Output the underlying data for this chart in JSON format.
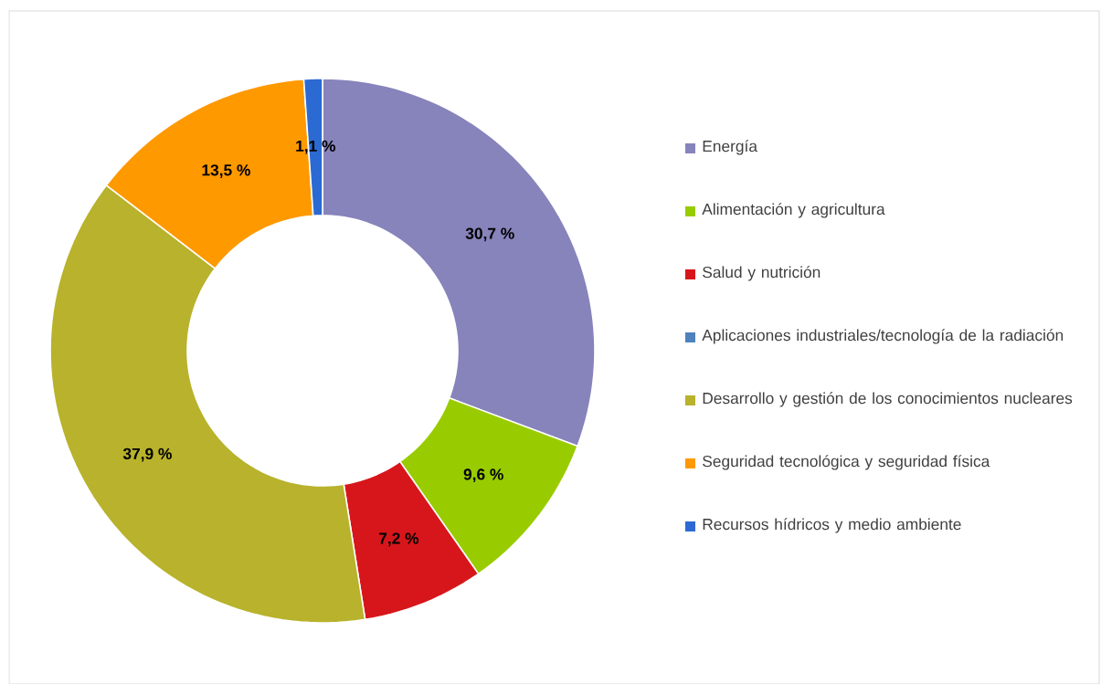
{
  "chart_data": {
    "type": "donut",
    "categories": [
      "Energía",
      "Alimentación y agricultura",
      "Salud y nutrición",
      "Aplicaciones industriales/tecnología de la radiación",
      "Desarrollo y gestión de los conocimientos nucleares",
      "Seguridad tecnológica y seguridad física",
      "Recursos hídricos y medio ambiente"
    ],
    "values": [
      30.7,
      9.6,
      7.2,
      0,
      37.9,
      13.5,
      1.1
    ],
    "colors": [
      "#8783bb",
      "#99cc00",
      "#d7161b",
      "#4f81bd",
      "#b8b22c",
      "#ff9900",
      "#2c6ad3"
    ],
    "value_labels": [
      "30,7 %",
      "9,6 %",
      "7,2 %",
      null,
      "37,9 %",
      "13,5 %",
      "1,1 %"
    ],
    "legend": "right"
  }
}
